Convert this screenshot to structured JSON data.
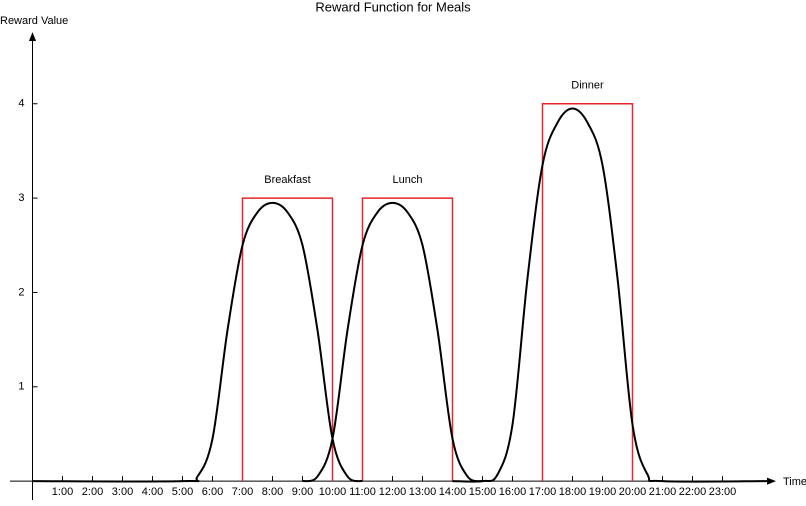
{
  "chart_data": {
    "type": "line",
    "title": "Reward Function for Meals",
    "y_label": "Reward Value",
    "x_label": "Time",
    "xlim": [
      -0.75,
      24.75
    ],
    "ylim": [
      -0.2,
      4.75
    ],
    "xticks": [
      {
        "value": 1,
        "label": "1:00"
      },
      {
        "value": 2,
        "label": "2:00"
      },
      {
        "value": 3,
        "label": "3:00"
      },
      {
        "value": 4,
        "label": "4:00"
      },
      {
        "value": 5,
        "label": "5:00"
      },
      {
        "value": 6,
        "label": "6:00"
      },
      {
        "value": 7,
        "label": "7:00"
      },
      {
        "value": 8,
        "label": "8:00"
      },
      {
        "value": 9,
        "label": "9:00"
      },
      {
        "value": 10,
        "label": "10:00"
      },
      {
        "value": 11,
        "label": "11:00"
      },
      {
        "value": 12,
        "label": "12:00"
      },
      {
        "value": 13,
        "label": "13:00"
      },
      {
        "value": 14,
        "label": "14:00"
      },
      {
        "value": 15,
        "label": "15:00"
      },
      {
        "value": 16,
        "label": "16:00"
      },
      {
        "value": 17,
        "label": "17:00"
      },
      {
        "value": 18,
        "label": "18:00"
      },
      {
        "value": 19,
        "label": "19:00"
      },
      {
        "value": 20,
        "label": "20:00"
      },
      {
        "value": 21,
        "label": "21:00"
      },
      {
        "value": 22,
        "label": "22:00"
      },
      {
        "value": 23,
        "label": "23:00"
      }
    ],
    "yticks": [
      1,
      2,
      3,
      4
    ],
    "windows": [
      {
        "label": "Breakfast",
        "start": 7,
        "end": 10,
        "value": 3,
        "color": "#e8262b"
      },
      {
        "label": "Lunch",
        "start": 11,
        "end": 14,
        "value": 3,
        "color": "#e8262b"
      },
      {
        "label": "Dinner",
        "start": 17,
        "end": 20,
        "value": 4,
        "color": "#e8262b"
      }
    ],
    "series": [
      {
        "color": "#000000",
        "x": [
          0,
          5,
          5.5,
          6,
          6.5,
          7,
          7.5,
          8,
          8.5,
          9,
          9.5,
          10,
          10.5,
          11
        ],
        "values": [
          0,
          0,
          0.05,
          0.45,
          1.6,
          2.5,
          2.85,
          2.95,
          2.85,
          2.5,
          1.6,
          0.45,
          0.05,
          0
        ]
      },
      {
        "color": "#000000",
        "x": [
          9,
          9.5,
          10,
          10.5,
          11,
          11.5,
          12,
          12.5,
          13,
          13.5,
          14,
          14.5,
          15
        ],
        "values": [
          0,
          0.05,
          0.45,
          1.6,
          2.5,
          2.85,
          2.95,
          2.85,
          2.5,
          1.6,
          0.45,
          0.05,
          0
        ]
      },
      {
        "color": "#000000",
        "x": [
          14,
          15,
          15.5,
          16,
          16.5,
          17,
          17.5,
          18,
          18.5,
          19,
          19.5,
          20,
          20.5,
          21,
          24.5
        ],
        "values": [
          0,
          0,
          0.07,
          0.6,
          2.15,
          3.35,
          3.8,
          3.95,
          3.8,
          3.35,
          2.15,
          0.6,
          0.07,
          0,
          0
        ]
      }
    ]
  }
}
